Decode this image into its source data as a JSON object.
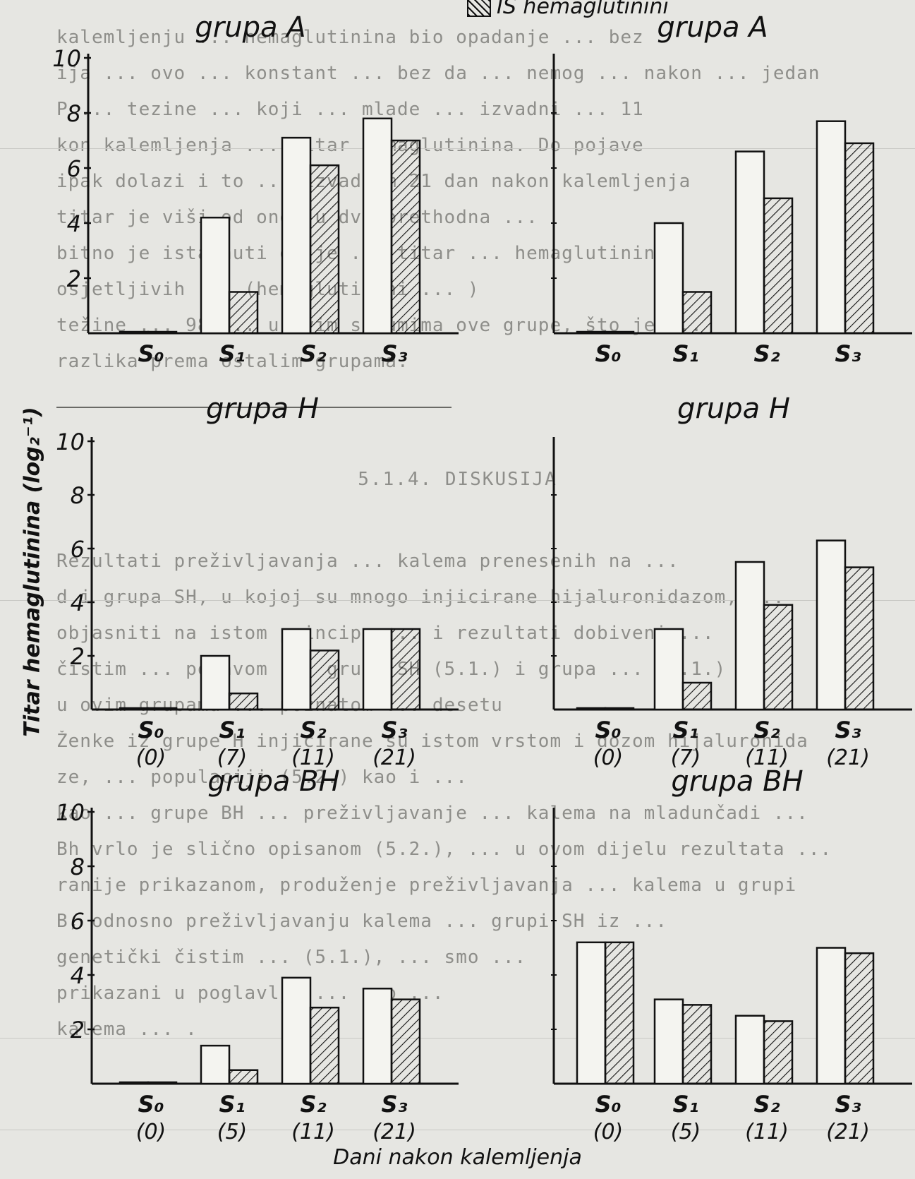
{
  "legend": {
    "hatched_label": "IS hemaglutinini"
  },
  "axis_title_y": "Titar hemaglutinina (log₂⁻¹)",
  "axis_title_x": "Dani nakon kalemljenja",
  "background_text": {
    "lines": [
      "kalemljenju ... hemaglutinina bio opadanje ... bez",
      "ija ... ovo ... konstant ... bez da ... nemog ... nakon ... jedan",
      "P ... tezine ... koji ... mlade ... izvadni ... 11",
      "kon kalemljenja ... titar hemaglutinina. Do pojave",
      "ipak dolazi i to ... izvadbom 21 dan nakon kalemljenja",
      "titar je viši od onog u dva prethodna ... ",
      "bitno je istaknuti da je ... titar ... hemaglutinina",
      "osjetljivih ... (hemaglutinini ... )",
      "težine ... 98 ... u ovim serumima ove grupe, što je ...",
      "razlika prema ostalim grupama."
    ],
    "section_heading": "5.1.4. DISKUSIJA",
    "lines2": [
      "Rezultati preživljavanja ... kalema prenesenih na ...",
      "d i grupa SH, u kojoj su mnogo injicirane hijaluronidazom, ...",
      "objasniti na istom principu ... i rezultati dobiveni ...",
      "čistim ... pojavom ... grupa SH (5.1.) i grupa ... (5.1.)",
      "u ovim grupama ... poznatom ... desetu",
      "Ženke iz grupe H injicirane su istom vrstom i dozom hijaluronida",
      "ze, ... populaciji (5.2.) kao i ...",
      "kao ... grupe BH ... preživljavanje ... kalema na mladunčadi ...",
      "Bh vrlo je slično opisanom (5.2.), ... u ovom dijelu rezultata ...",
      "ranije prikazanom, produženje preživljavanja ... kalema u grupi",
      "B, odnosno preživljavanju kalema ... grupi SH iz ...",
      "genetički čistim ... (5.1.), ... smo ...",
      "prikazani u poglavlju ... ovo ... ",
      "kalema ... ."
    ]
  },
  "chart_data": [
    {
      "type": "bar",
      "title": "grupa A",
      "categories": [
        "S₀",
        "S₁",
        "S₂",
        "S₃"
      ],
      "days": [
        "",
        "",
        "",
        ""
      ],
      "ylim": [
        0,
        10
      ],
      "yticks": [
        "2",
        "4",
        "6",
        "8",
        "10"
      ],
      "series": [
        {
          "style": "open",
          "values": [
            0.0,
            4.2,
            7.1,
            7.8
          ]
        },
        {
          "name": "IS hemaglutinini",
          "style": "hatched",
          "values": [
            0.0,
            1.5,
            6.1,
            7.0
          ]
        }
      ]
    },
    {
      "type": "bar",
      "title": "grupa A",
      "categories": [
        "S₀",
        "S₁",
        "S₂",
        "S₃"
      ],
      "days": [
        "",
        "",
        "",
        ""
      ],
      "ylim": [
        0,
        10
      ],
      "yticks": [],
      "series": [
        {
          "style": "open",
          "values": [
            0.0,
            4.0,
            6.6,
            7.7
          ]
        },
        {
          "name": "IS hemaglutinini",
          "style": "hatched",
          "values": [
            0.0,
            1.5,
            4.9,
            6.9
          ]
        }
      ]
    },
    {
      "type": "bar",
      "title": "grupa H",
      "categories": [
        "S₀",
        "S₁",
        "S₂",
        "S₃"
      ],
      "days": [
        "(0)",
        "(7)",
        "(11)",
        "(21)"
      ],
      "ylim": [
        0,
        10
      ],
      "yticks": [
        "2",
        "4",
        "6",
        "8",
        "10"
      ],
      "series": [
        {
          "style": "open",
          "values": [
            0.0,
            2.0,
            3.0,
            3.0
          ]
        },
        {
          "name": "IS hemaglutinini",
          "style": "hatched",
          "values": [
            0.0,
            0.6,
            2.2,
            3.0
          ]
        }
      ]
    },
    {
      "type": "bar",
      "title": "grupa H",
      "categories": [
        "S₀",
        "S₁",
        "S₂",
        "S₃"
      ],
      "days": [
        "(0)",
        "(7)",
        "(11)",
        "(21)"
      ],
      "ylim": [
        0,
        10
      ],
      "yticks": [],
      "series": [
        {
          "style": "open",
          "values": [
            0.0,
            3.0,
            5.5,
            6.3
          ]
        },
        {
          "name": "IS hemaglutinini",
          "style": "hatched",
          "values": [
            0.0,
            1.0,
            3.9,
            5.3
          ]
        }
      ]
    },
    {
      "type": "bar",
      "title": "grupa BH",
      "categories": [
        "S₀",
        "S₁",
        "S₂",
        "S₃"
      ],
      "days": [
        "(0)",
        "(5)",
        "(11)",
        "(21)"
      ],
      "ylim": [
        0,
        10
      ],
      "yticks": [
        "2",
        "4",
        "6",
        "8",
        "10"
      ],
      "series": [
        {
          "style": "open",
          "values": [
            0.0,
            1.4,
            3.9,
            3.5
          ]
        },
        {
          "name": "IS hemaglutinini",
          "style": "hatched",
          "values": [
            0.0,
            0.5,
            2.8,
            3.1
          ]
        }
      ]
    },
    {
      "type": "bar",
      "title": "grupa BH",
      "categories": [
        "S₀",
        "S₁",
        "S₂",
        "S₃"
      ],
      "days": [
        "(0)",
        "(5)",
        "(11)",
        "(21)"
      ],
      "ylim": [
        0,
        10
      ],
      "yticks": [],
      "series": [
        {
          "style": "open",
          "values": [
            5.2,
            3.1,
            2.5,
            5.0
          ]
        },
        {
          "name": "IS hemaglutinini",
          "style": "hatched",
          "values": [
            5.2,
            2.9,
            2.3,
            4.8
          ]
        }
      ]
    }
  ]
}
